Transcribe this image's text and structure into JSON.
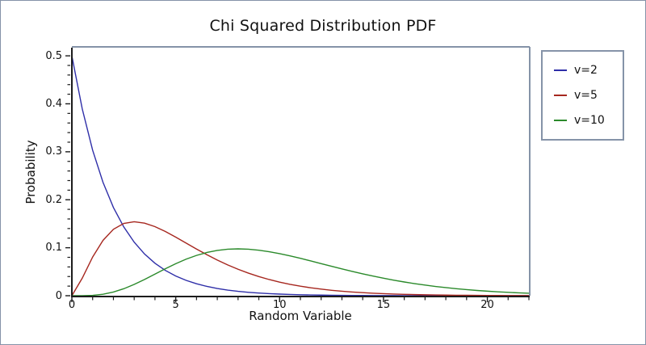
{
  "window": {
    "background_color": "#ffffff",
    "frame_border_color": "#8593a8"
  },
  "colors": {
    "axis": "#1c1c1c",
    "frame": "#8593a8",
    "text": "#111111"
  },
  "legend": {
    "position": "outside-right",
    "border_color": "#8593a8"
  },
  "chart_data": {
    "type": "line",
    "title": "Chi Squared Distribution PDF",
    "xlabel": "Random Variable",
    "ylabel": "Probability",
    "xlim": [
      0,
      22
    ],
    "ylim": [
      0,
      0.517
    ],
    "grid": false,
    "legend_position": "outside-right",
    "x_tick_labels": [
      "0",
      "5",
      "10",
      "15",
      "20"
    ],
    "x_major_ticks": [
      0,
      5,
      10,
      15,
      20
    ],
    "x_minor_step": 1,
    "y_tick_labels": [
      "0",
      "0.1",
      "0.2",
      "0.3",
      "0.4",
      "0.5"
    ],
    "y_major_ticks": [
      0,
      0.1,
      0.2,
      0.3,
      0.4,
      0.5
    ],
    "y_minor_step": 0.02,
    "x": [
      0,
      0.5,
      1,
      1.5,
      2,
      2.5,
      3,
      3.5,
      4,
      4.5,
      5,
      5.5,
      6,
      6.5,
      7,
      7.5,
      8,
      8.5,
      9,
      9.5,
      10,
      10.5,
      11,
      11.5,
      12,
      12.5,
      13,
      13.5,
      14,
      14.5,
      15,
      15.5,
      16,
      16.5,
      17,
      17.5,
      18,
      18.5,
      19,
      19.5,
      20,
      20.5,
      21,
      21.5,
      22
    ],
    "series": [
      {
        "name": "v=2",
        "color": "#2e2ea8",
        "values": [
          0.5,
          0.3894,
          0.30327,
          0.23618,
          0.18394,
          0.14325,
          0.11157,
          0.08689,
          0.06767,
          0.0527,
          0.04104,
          0.03197,
          0.02489,
          0.01939,
          0.0151,
          0.01176,
          0.00916,
          0.00713,
          0.00555,
          0.00433,
          0.00337,
          0.00262,
          0.00204,
          0.00159,
          0.00124,
          0.00097,
          0.00075,
          0.00058,
          0.00046,
          0.00036,
          0.00028,
          0.00022,
          0.00017,
          0.00013,
          0.0001,
          8e-05,
          6e-05,
          5e-05,
          4e-05,
          3e-05,
          2e-05,
          2e-05,
          1e-05,
          1e-05,
          1e-05
        ]
      },
      {
        "name": "v=5",
        "color": "#a6271f",
        "values": [
          0,
          0.03663,
          0.08066,
          0.1154,
          0.13839,
          0.15061,
          0.15418,
          0.15131,
          0.14399,
          0.13381,
          0.12204,
          0.10966,
          0.09731,
          0.08546,
          0.07437,
          0.06424,
          0.05512,
          0.04701,
          0.03989,
          0.03369,
          0.02834,
          0.02375,
          0.01983,
          0.01651,
          0.0137,
          0.01135,
          0.00937,
          0.00772,
          0.00635,
          0.00521,
          0.00427,
          0.0035,
          0.00286,
          0.00233,
          0.0019,
          0.00154,
          0.00125,
          0.00102,
          0.00082,
          0.00067,
          0.00054,
          0.00044,
          0.00035,
          0.00028,
          0.00023
        ]
      },
      {
        "name": "v=10",
        "color": "#2b8a2b",
        "values": [
          0,
          6e-05,
          0.00079,
          0.00311,
          0.00766,
          0.01457,
          0.02353,
          0.03395,
          0.04511,
          0.05628,
          0.0668,
          0.07617,
          0.08401,
          0.09012,
          0.0944,
          0.09689,
          0.09768,
          0.09695,
          0.09491,
          0.09176,
          0.08773,
          0.08305,
          0.0779,
          0.07248,
          0.06693,
          0.06137,
          0.05591,
          0.05064,
          0.04561,
          0.04088,
          0.03646,
          0.03237,
          0.02863,
          0.02521,
          0.02213,
          0.01935,
          0.01687,
          0.01466,
          0.0127,
          0.01097,
          0.00946,
          0.00813,
          0.00697,
          0.00597,
          0.00509
        ]
      }
    ]
  }
}
